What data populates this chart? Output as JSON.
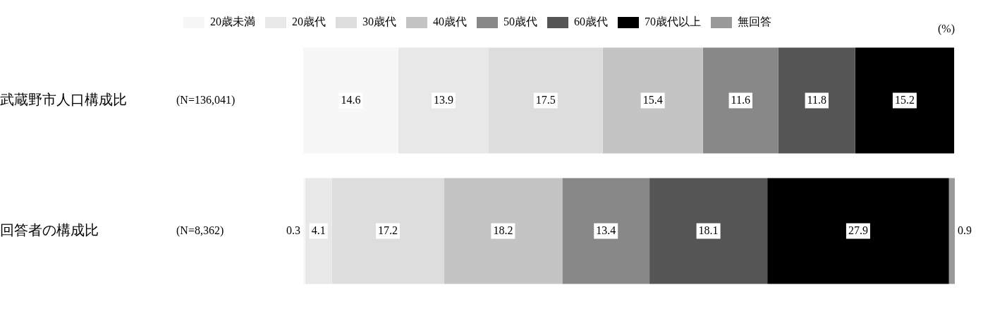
{
  "chart_data": {
    "type": "bar",
    "orientation": "horizontal",
    "stacked": true,
    "categories": [
      "武蔵野市人口構成比",
      "回答者の構成比"
    ],
    "series": [
      {
        "name": "20歳未満",
        "color": "#f7f7f7",
        "values": [
          14.6,
          0.3
        ]
      },
      {
        "name": "20歳代",
        "color": "#e8e8e8",
        "values": [
          13.9,
          4.1
        ]
      },
      {
        "name": "30歳代",
        "color": "#dddddd",
        "values": [
          17.5,
          17.2
        ]
      },
      {
        "name": "40歳代",
        "color": "#c4c4c4",
        "values": [
          15.4,
          18.2
        ]
      },
      {
        "name": "50歳代",
        "color": "#888888",
        "values": [
          11.6,
          13.4
        ]
      },
      {
        "name": "60歳代",
        "color": "#555555",
        "values": [
          11.8,
          18.1
        ]
      },
      {
        "name": "70歳代以上",
        "color": "#000000",
        "values": [
          15.2,
          27.9
        ]
      },
      {
        "name": "無回答",
        "color": "#999999",
        "values": [
          null,
          0.9
        ]
      }
    ],
    "xlim": [
      0,
      100.1
    ],
    "tick_labels": "y",
    "data_labels": true,
    "legend": "top",
    "annotations": [
      "(N=136,041)",
      "(N=8,362)",
      "(%)"
    ]
  }
}
